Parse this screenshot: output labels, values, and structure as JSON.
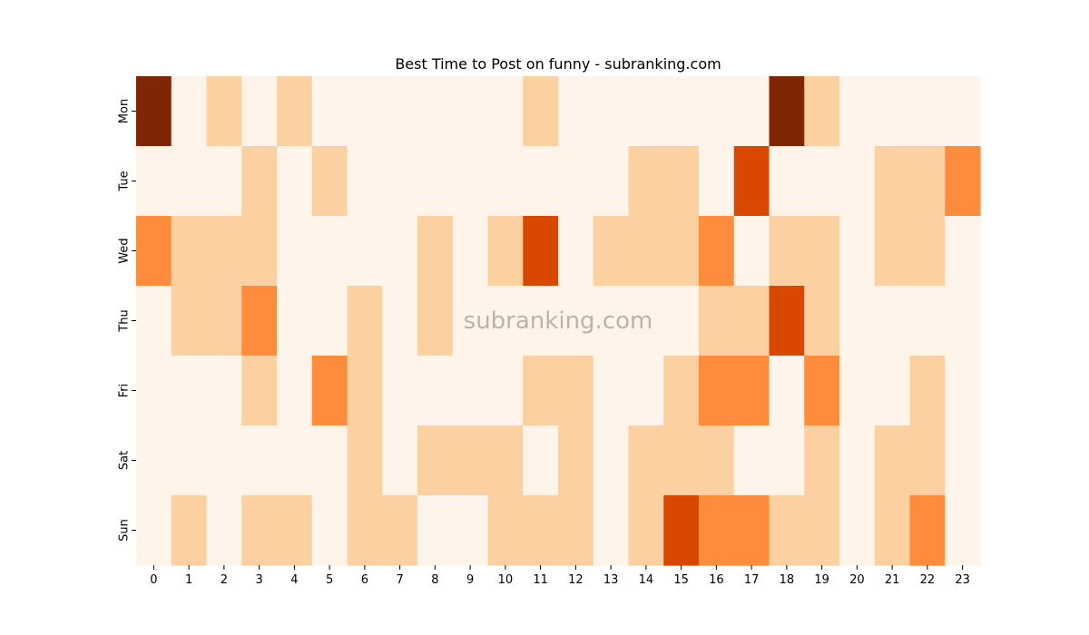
{
  "chart_data": {
    "type": "heatmap",
    "title": "Best Time to Post on funny - subranking.com",
    "watermark": "subranking.com",
    "x_labels": [
      "0",
      "1",
      "2",
      "3",
      "4",
      "5",
      "6",
      "7",
      "8",
      "9",
      "10",
      "11",
      "12",
      "13",
      "14",
      "15",
      "16",
      "17",
      "18",
      "19",
      "20",
      "21",
      "22",
      "23"
    ],
    "y_labels": [
      "Mon",
      "Tue",
      "Wed",
      "Thu",
      "Fri",
      "Sat",
      "Sun"
    ],
    "xlabel": "",
    "ylabel": "",
    "levels": [
      0,
      1,
      2,
      3,
      4
    ],
    "level_colors": [
      "#fef4e9",
      "#fdd0a2",
      "#fd8d3c",
      "#d94801",
      "#7f2704"
    ],
    "values": [
      [
        4,
        0,
        1,
        0,
        1,
        0,
        0,
        0,
        0,
        0,
        0,
        1,
        0,
        0,
        0,
        0,
        0,
        0,
        4,
        1,
        0,
        0,
        0,
        0
      ],
      [
        0,
        0,
        0,
        1,
        0,
        1,
        0,
        0,
        0,
        0,
        0,
        0,
        0,
        0,
        1,
        1,
        0,
        3,
        0,
        0,
        0,
        1,
        1,
        2
      ],
      [
        2,
        1,
        1,
        1,
        0,
        0,
        0,
        0,
        1,
        0,
        1,
        3,
        0,
        1,
        1,
        1,
        2,
        0,
        1,
        1,
        0,
        1,
        1,
        0
      ],
      [
        0,
        1,
        1,
        2,
        0,
        0,
        1,
        0,
        1,
        0,
        0,
        0,
        0,
        0,
        0,
        0,
        1,
        1,
        3,
        1,
        0,
        0,
        0,
        0
      ],
      [
        0,
        0,
        0,
        1,
        0,
        2,
        1,
        0,
        0,
        0,
        0,
        1,
        1,
        0,
        0,
        1,
        2,
        2,
        0,
        2,
        0,
        0,
        1,
        0
      ],
      [
        0,
        0,
        0,
        0,
        0,
        0,
        1,
        0,
        1,
        1,
        1,
        0,
        1,
        0,
        1,
        1,
        1,
        0,
        0,
        1,
        0,
        1,
        1,
        0
      ],
      [
        0,
        1,
        0,
        1,
        1,
        0,
        1,
        1,
        0,
        0,
        1,
        1,
        1,
        0,
        1,
        3,
        2,
        2,
        1,
        1,
        0,
        1,
        2,
        0
      ]
    ]
  }
}
